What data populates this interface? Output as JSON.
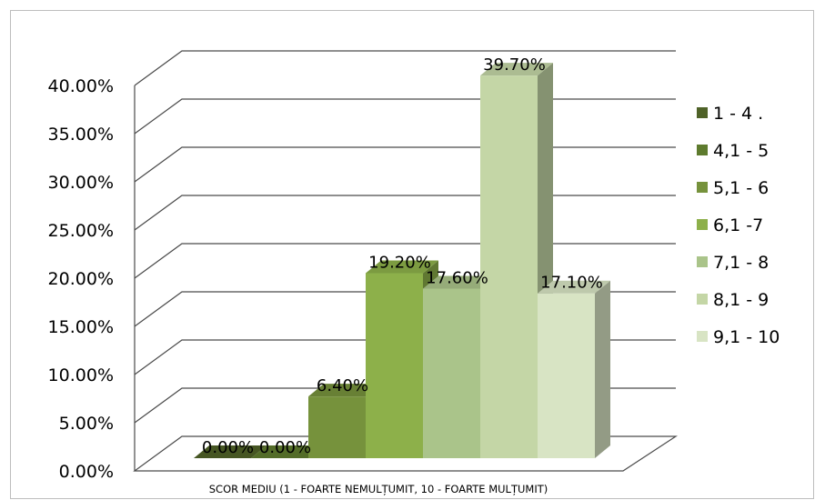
{
  "chart_data": {
    "type": "bar",
    "title": "",
    "xlabel": "SCOR MEDIU (1 - FOARTE NEMULȚUMIT, 10 - FOARTE MULȚUMIT)",
    "ylabel": "",
    "ylim": [
      0,
      40
    ],
    "y_tick_step": 5,
    "y_tick_labels": [
      "0.00%",
      "5.00%",
      "10.00%",
      "15.00%",
      "20.00%",
      "25.00%",
      "30.00%",
      "35.00%",
      "40.00%"
    ],
    "grid": true,
    "legend_position": "right",
    "three_d": true,
    "series": [
      {
        "name": "1 - 4 .",
        "value": 0.0,
        "label": "0.00%",
        "color": "#4f6228"
      },
      {
        "name": "4,1 - 5",
        "value": 0.0,
        "label": "0.00%",
        "color": "#5e7b2e"
      },
      {
        "name": "5,1 - 6",
        "value": 6.4,
        "label": "6.40%",
        "color": "#76923c"
      },
      {
        "name": "6,1 -7",
        "value": 19.2,
        "label": "19.20%",
        "color": "#8db04a"
      },
      {
        "name": "7,1 - 8",
        "value": 17.6,
        "label": "17.60%",
        "color": "#aac48a"
      },
      {
        "name": "8,1 - 9",
        "value": 39.7,
        "label": "39.70%",
        "color": "#c4d6a6"
      },
      {
        "name": "9,1 - 10",
        "value": 17.1,
        "label": "17.10%",
        "color": "#d8e4c4"
      }
    ]
  }
}
